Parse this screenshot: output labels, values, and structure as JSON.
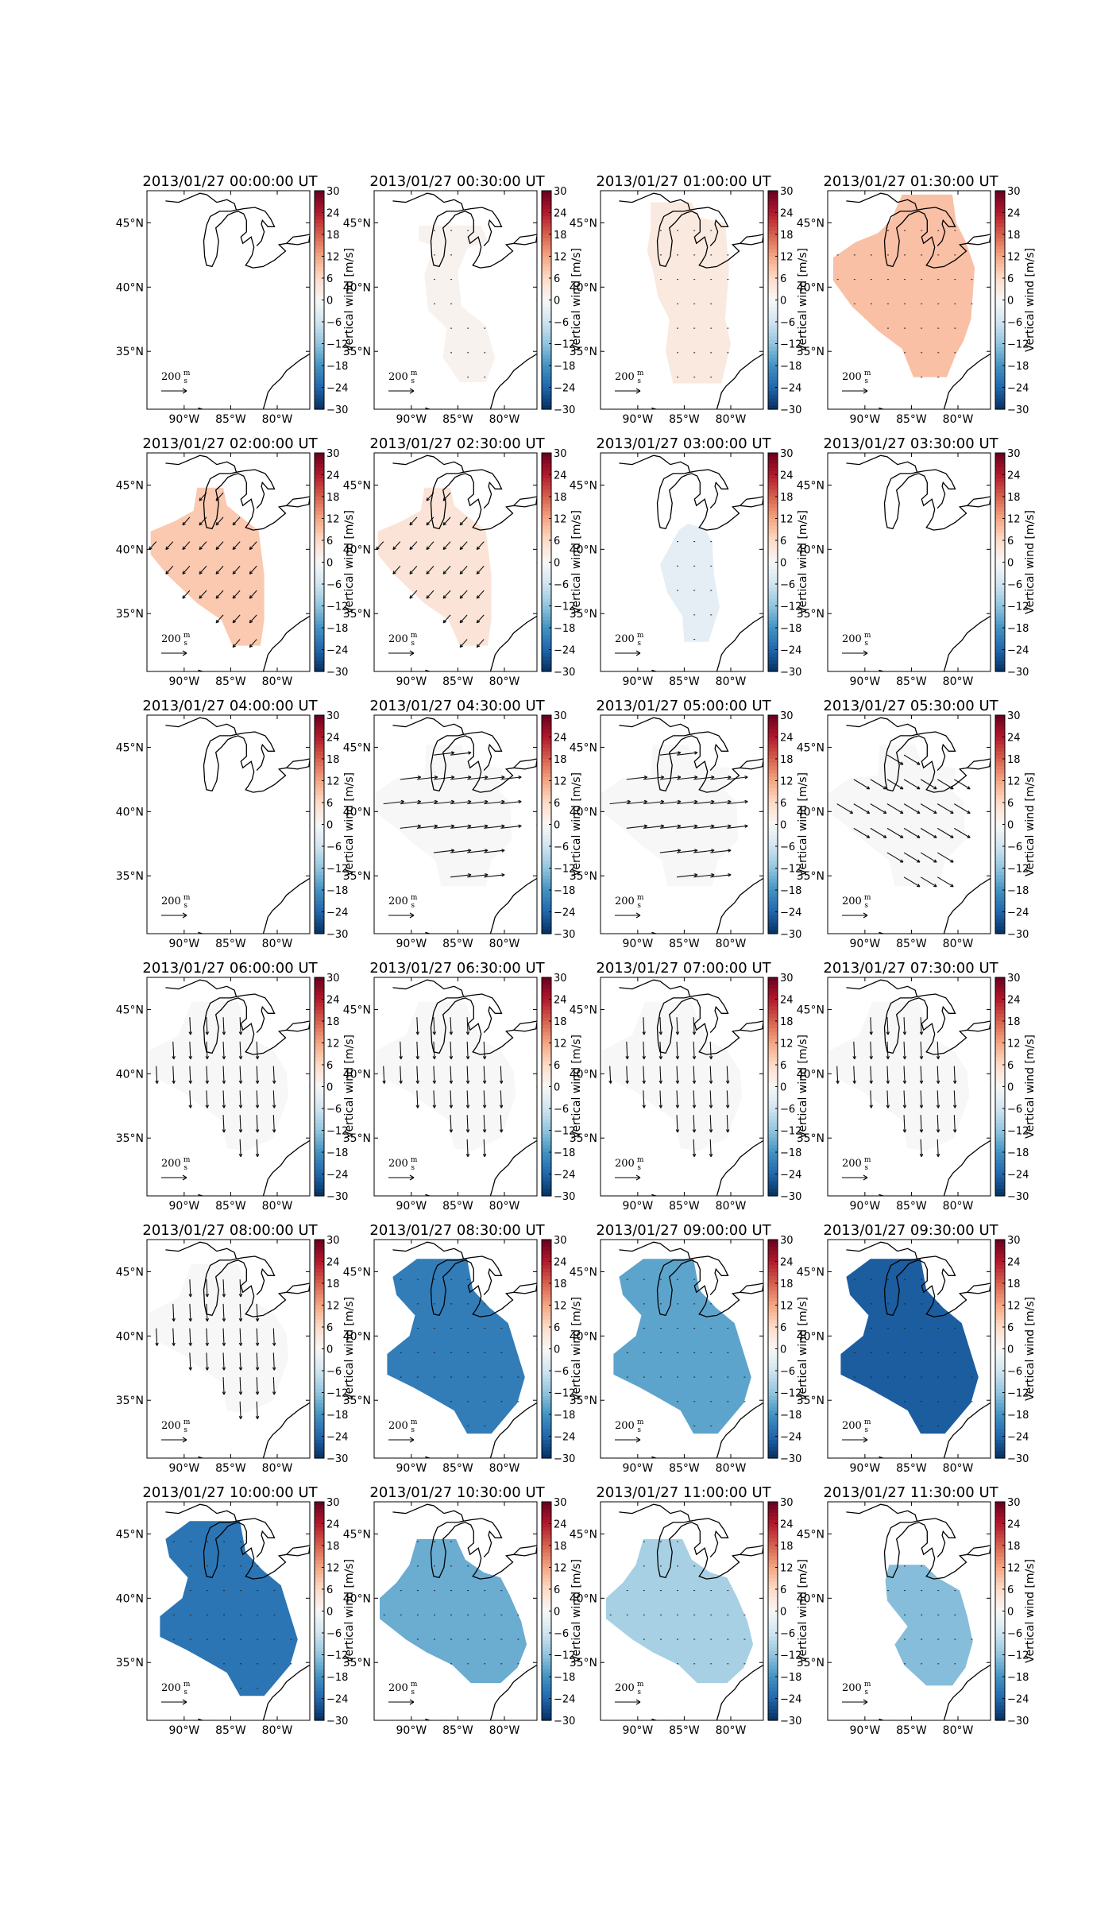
{
  "chart_data": {
    "type": "heatmap",
    "layout": {
      "rows": 6,
      "cols": 4
    },
    "colorbar": {
      "label": "Vertical wind [m/s]",
      "colormap": "RdBu_r",
      "range": [
        -30,
        30
      ],
      "ticks": [
        "30",
        "24",
        "18",
        "12",
        "6",
        "0",
        "−6",
        "−12",
        "−18",
        "−24",
        "−30"
      ]
    },
    "axes": {
      "xticks": [
        "90°W",
        "85°W",
        "80°W"
      ],
      "xtick_lons": [
        -90,
        -85,
        -80
      ],
      "yticks": [
        "45°N",
        "40°N",
        "35°N"
      ],
      "ytick_lats": [
        45,
        40,
        35
      ],
      "lon_range": [
        -94,
        -76.5
      ],
      "lat_range": [
        30.5,
        47.5
      ]
    },
    "scale_label": "200",
    "scale_units": {
      "num": "m",
      "den": "s"
    },
    "panels": [
      {
        "title": "2013/01/27 00:00:00 UT",
        "vertical_wind": null,
        "region": "none",
        "arrows": "none"
      },
      {
        "title": "2013/01/27 00:30:00 UT",
        "vertical_wind": 1,
        "region": "A",
        "arrows": "dots"
      },
      {
        "title": "2013/01/27 01:00:00 UT",
        "vertical_wind": 3,
        "region": "B",
        "arrows": "dots"
      },
      {
        "title": "2013/01/27 01:30:00 UT",
        "vertical_wind": 9,
        "region": "C",
        "arrows": "dots"
      },
      {
        "title": "2013/01/27 02:00:00 UT",
        "vertical_wind": 8,
        "region": "D",
        "arrows": "southwest"
      },
      {
        "title": "2013/01/27 02:30:00 UT",
        "vertical_wind": 4,
        "region": "D",
        "arrows": "southwest"
      },
      {
        "title": "2013/01/27 03:00:00 UT",
        "vertical_wind": -3,
        "region": "E",
        "arrows": "dots"
      },
      {
        "title": "2013/01/27 03:30:00 UT",
        "vertical_wind": null,
        "region": "none",
        "arrows": "none"
      },
      {
        "title": "2013/01/27 04:00:00 UT",
        "vertical_wind": null,
        "region": "none",
        "arrows": "none"
      },
      {
        "title": "2013/01/27 04:30:00 UT",
        "vertical_wind": 0,
        "region": "F",
        "arrows": "east"
      },
      {
        "title": "2013/01/27 05:00:00 UT",
        "vertical_wind": 0,
        "region": "F",
        "arrows": "east"
      },
      {
        "title": "2013/01/27 05:30:00 UT",
        "vertical_wind": 0,
        "region": "F",
        "arrows": "southeast"
      },
      {
        "title": "2013/01/27 06:00:00 UT",
        "vertical_wind": 0,
        "region": "G",
        "arrows": "south"
      },
      {
        "title": "2013/01/27 06:30:00 UT",
        "vertical_wind": 0,
        "region": "G",
        "arrows": "south"
      },
      {
        "title": "2013/01/27 07:00:00 UT",
        "vertical_wind": 0,
        "region": "G",
        "arrows": "south"
      },
      {
        "title": "2013/01/27 07:30:00 UT",
        "vertical_wind": 0,
        "region": "G",
        "arrows": "south"
      },
      {
        "title": "2013/01/27 08:00:00 UT",
        "vertical_wind": 0,
        "region": "G",
        "arrows": "south"
      },
      {
        "title": "2013/01/27 08:30:00 UT",
        "vertical_wind": -21,
        "region": "H",
        "arrows": "dots"
      },
      {
        "title": "2013/01/27 09:00:00 UT",
        "vertical_wind": -16,
        "region": "H",
        "arrows": "dots"
      },
      {
        "title": "2013/01/27 09:30:00 UT",
        "vertical_wind": -25,
        "region": "H",
        "arrows": "dots"
      },
      {
        "title": "2013/01/27 10:00:00 UT",
        "vertical_wind": -22,
        "region": "H",
        "arrows": "dots"
      },
      {
        "title": "2013/01/27 10:30:00 UT",
        "vertical_wind": -15,
        "region": "I",
        "arrows": "dots"
      },
      {
        "title": "2013/01/27 11:00:00 UT",
        "vertical_wind": -10,
        "region": "I",
        "arrows": "dots"
      },
      {
        "title": "2013/01/27 11:30:00 UT",
        "vertical_wind": -13,
        "region": "J",
        "arrows": "dots"
      }
    ]
  }
}
